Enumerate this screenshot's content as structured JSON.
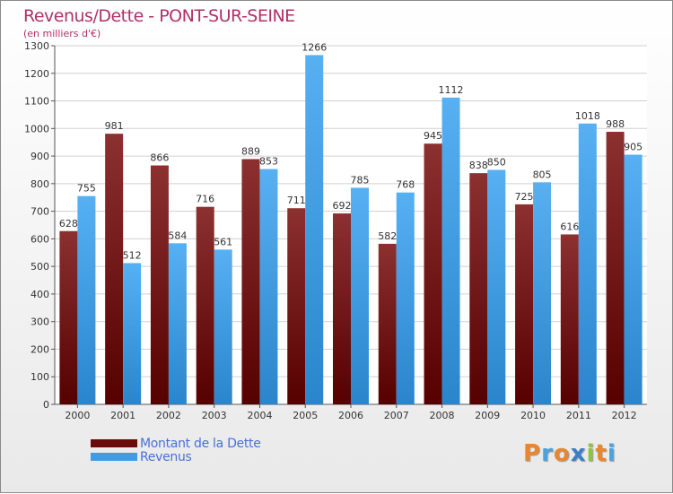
{
  "title": "Revenus/Dette - PONT-SUR-SEINE",
  "subtitle": "(en milliers d'€)",
  "colors": {
    "debt": "#6a0a0a",
    "revenue": "#3f9be3",
    "title": "#b0306a",
    "legend_text": "#4a6fd8"
  },
  "legend": [
    {
      "label": "Montant de la Dette",
      "color": "#6a0a0a"
    },
    {
      "label": "Revenus",
      "color": "#3f9be3"
    }
  ],
  "logo": {
    "text": "Proxiti"
  },
  "chart_data": {
    "type": "bar",
    "title": "Revenus/Dette - PONT-SUR-SEINE",
    "subtitle": "(en milliers d'€)",
    "categories": [
      "2000",
      "2001",
      "2002",
      "2003",
      "2004",
      "2005",
      "2006",
      "2007",
      "2008",
      "2009",
      "2010",
      "2011",
      "2012"
    ],
    "series": [
      {
        "name": "Montant de la Dette",
        "values": [
          628,
          981,
          866,
          716,
          889,
          711,
          692,
          582,
          945,
          838,
          725,
          616,
          988
        ]
      },
      {
        "name": "Revenus",
        "values": [
          755,
          512,
          584,
          561,
          853,
          1266,
          785,
          768,
          1112,
          850,
          805,
          1018,
          905
        ]
      }
    ],
    "ylim": [
      0,
      1300
    ],
    "yticks": [
      0,
      100,
      200,
      300,
      400,
      500,
      600,
      700,
      800,
      900,
      1000,
      1100,
      1200,
      1300
    ],
    "grid": true,
    "legend_position": "bottom-left"
  }
}
